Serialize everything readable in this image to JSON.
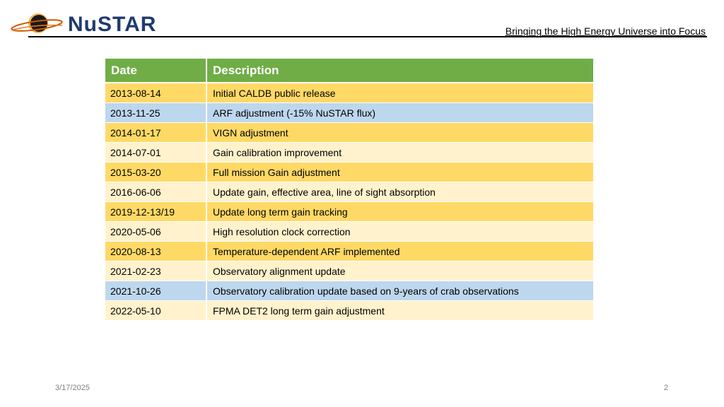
{
  "header": {
    "logo_text": "NuSTAR",
    "tagline": "Bringing the High Energy Universe into Focus"
  },
  "table": {
    "headers": [
      "Date",
      "Description"
    ],
    "rows": [
      {
        "date": "2013-08-14",
        "description": "Initial CALDB public release",
        "color": "#ffd966"
      },
      {
        "date": "2013-11-25",
        "description": "ARF adjustment (-15% NuSTAR flux)",
        "color": "#bdd7ee"
      },
      {
        "date": "2014-01-17",
        "description": "VIGN adjustment",
        "color": "#ffd966"
      },
      {
        "date": "2014-07-01",
        "description": "Gain calibration improvement",
        "color": "#fff2cc"
      },
      {
        "date": "2015-03-20",
        "description": "Full mission Gain adjustment",
        "color": "#ffd966"
      },
      {
        "date": "2016-06-06",
        "description": "Update gain, effective area, line of sight absorption",
        "color": "#fff2cc"
      },
      {
        "date": "2019-12-13/19",
        "description": "Update long term gain tracking",
        "color": "#ffd966"
      },
      {
        "date": "2020-05-06",
        "description": "High resolution clock correction",
        "color": "#fff2cc"
      },
      {
        "date": "2020-08-13",
        "description": "Temperature-dependent ARF implemented",
        "color": "#ffd966"
      },
      {
        "date": "2021-02-23",
        "description": "Observatory alignment update",
        "color": "#fff2cc"
      },
      {
        "date": "2021-10-26",
        "description": "Observatory calibration update based on 9-years of crab observations",
        "color": "#bdd7ee"
      },
      {
        "date": "2022-05-10",
        "description": "FPMA DET2 long term gain adjustment",
        "color": "#fff2cc"
      }
    ]
  },
  "footer": {
    "date": "3/17/2025",
    "page": "2"
  },
  "colors": {
    "header_green": "#70ad47",
    "gold": "#ffd966",
    "blue": "#bdd7ee",
    "light": "#fff2cc",
    "logo_navy": "#1f3c6e"
  }
}
